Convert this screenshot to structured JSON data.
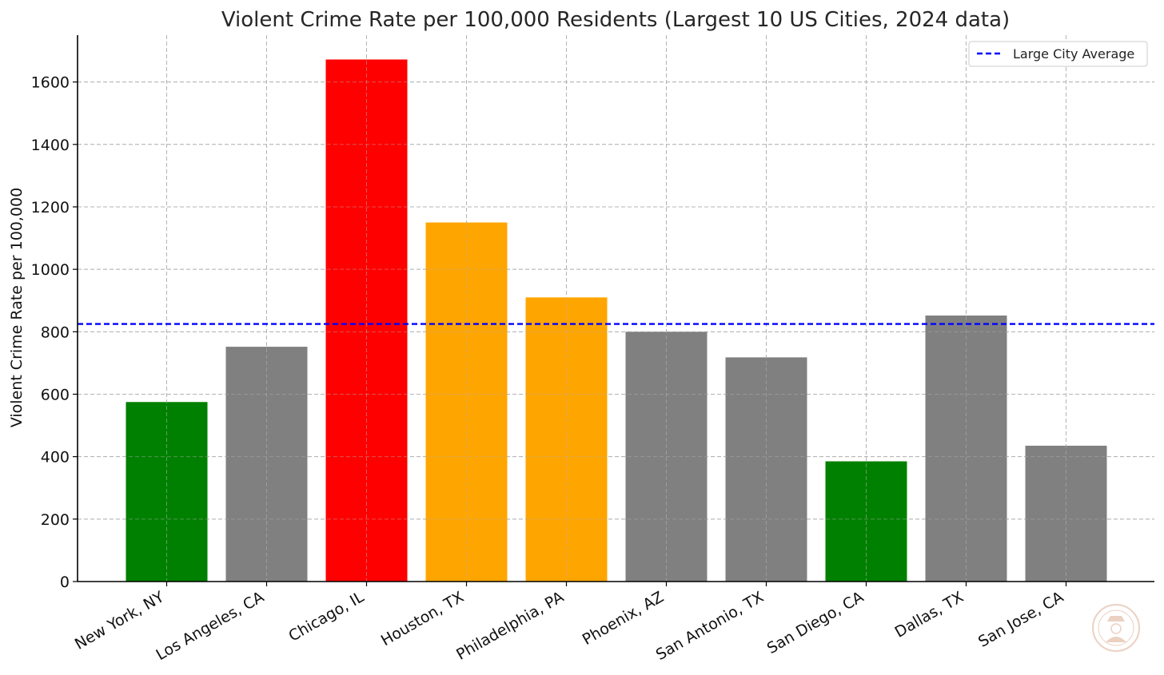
{
  "chart_data": {
    "type": "bar",
    "title": "Violent Crime Rate per 100,000 Residents (Largest 10 US Cities, 2024 data)",
    "xlabel": "",
    "ylabel": "Violent Crime Rate per 100,000",
    "ylim": [
      0,
      1750
    ],
    "yticks": [
      0,
      200,
      400,
      600,
      800,
      1000,
      1200,
      1400,
      1600
    ],
    "grid": true,
    "categories": [
      "New York, NY",
      "Los Angeles, CA",
      "Chicago, IL",
      "Houston, TX",
      "Philadelphia, PA",
      "Phoenix, AZ",
      "San Antonio, TX",
      "San Diego, CA",
      "Dallas, TX",
      "San Jose, CA"
    ],
    "values": [
      575,
      752,
      1672,
      1150,
      910,
      800,
      718,
      385,
      852,
      435
    ],
    "colors": [
      "#008000",
      "#808080",
      "#ff0000",
      "#ffa500",
      "#ffa500",
      "#808080",
      "#808080",
      "#008000",
      "#808080",
      "#808080"
    ],
    "reference_line": {
      "name": "Large City Average",
      "value": 825,
      "color": "#0000ff",
      "style": "dashed"
    },
    "legend_position": "top-right"
  },
  "watermark": {
    "icon": "detective-seal-icon",
    "color": "#e8c9b8"
  }
}
